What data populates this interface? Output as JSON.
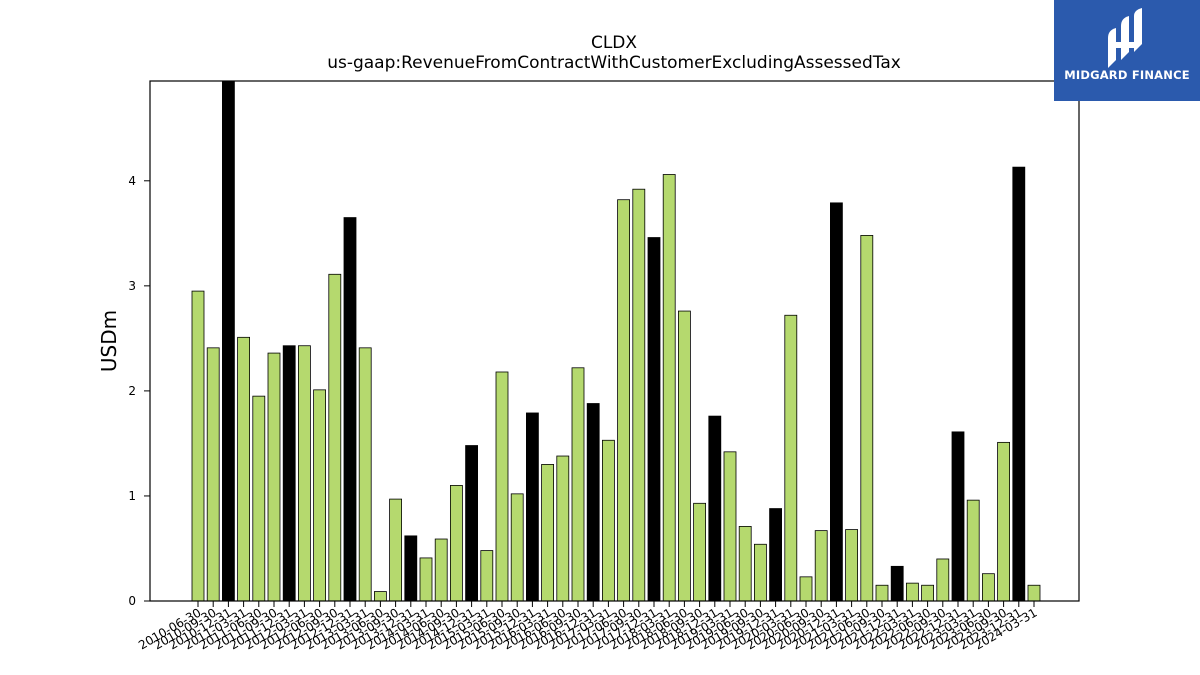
{
  "brand": {
    "name": "MIDGARD FINANCE",
    "color": "#2b5aad"
  },
  "chart_data": {
    "type": "bar",
    "title": "CLDX",
    "subtitle": "us-gaap:RevenueFromContractWithCustomerExcludingAssessedTax",
    "ylabel": "USDm",
    "xlabel": "",
    "ylim": [
      0,
      4.95
    ],
    "yticks": [
      0,
      1,
      2,
      3,
      4
    ],
    "grid": false,
    "colors": {
      "quarter": "#b5d96e",
      "fiscal_year_end": "#000000"
    },
    "categories": [
      "2010-06-30",
      "2010-09-30",
      "2010-12-31",
      "2011-03-31",
      "2011-06-30",
      "2011-09-30",
      "2011-12-31",
      "2012-03-31",
      "2012-06-30",
      "2012-09-30",
      "2012-12-31",
      "2013-03-31",
      "2013-06-30",
      "2013-09-30",
      "2013-12-31",
      "2014-03-31",
      "2014-06-30",
      "2014-09-30",
      "2014-12-31",
      "2015-03-31",
      "2015-06-30",
      "2015-09-30",
      "2015-12-31",
      "2016-03-31",
      "2016-06-30",
      "2016-09-30",
      "2016-12-31",
      "2017-03-31",
      "2017-06-30",
      "2017-09-30",
      "2017-12-31",
      "2018-03-31",
      "2018-06-30",
      "2018-09-30",
      "2018-12-31",
      "2019-03-31",
      "2019-06-30",
      "2019-09-30",
      "2019-12-31",
      "2020-03-31",
      "2020-06-30",
      "2020-09-30",
      "2020-12-31",
      "2021-03-31",
      "2021-06-30",
      "2021-09-30",
      "2021-12-31",
      "2022-03-31",
      "2022-06-30",
      "2022-09-30",
      "2022-12-31",
      "2023-03-31",
      "2023-06-30",
      "2023-09-30",
      "2023-12-31",
      "2024-03-31"
    ],
    "values": [
      2.95,
      2.41,
      4.95,
      2.51,
      1.95,
      2.36,
      2.43,
      2.43,
      2.01,
      3.11,
      3.65,
      2.41,
      0.09,
      0.97,
      0.62,
      0.41,
      0.59,
      1.1,
      1.48,
      0.48,
      2.18,
      1.02,
      1.79,
      1.3,
      1.38,
      2.22,
      1.88,
      1.53,
      3.82,
      3.92,
      3.46,
      4.06,
      2.76,
      0.93,
      1.76,
      1.42,
      0.71,
      0.54,
      0.88,
      2.72,
      0.23,
      0.67,
      3.79,
      0.68,
      3.48,
      0.15,
      0.33,
      0.17,
      0.15,
      0.4,
      1.61,
      0.96,
      0.26,
      1.51,
      4.13,
      0.15
    ],
    "fiscal_year_end": [
      false,
      false,
      true,
      false,
      false,
      false,
      true,
      false,
      false,
      false,
      true,
      false,
      false,
      false,
      true,
      false,
      false,
      false,
      true,
      false,
      false,
      false,
      true,
      false,
      false,
      false,
      true,
      false,
      false,
      false,
      true,
      false,
      false,
      false,
      true,
      false,
      false,
      false,
      true,
      false,
      false,
      false,
      true,
      false,
      false,
      false,
      true,
      false,
      false,
      false,
      true,
      false,
      false,
      false,
      true,
      false
    ]
  }
}
